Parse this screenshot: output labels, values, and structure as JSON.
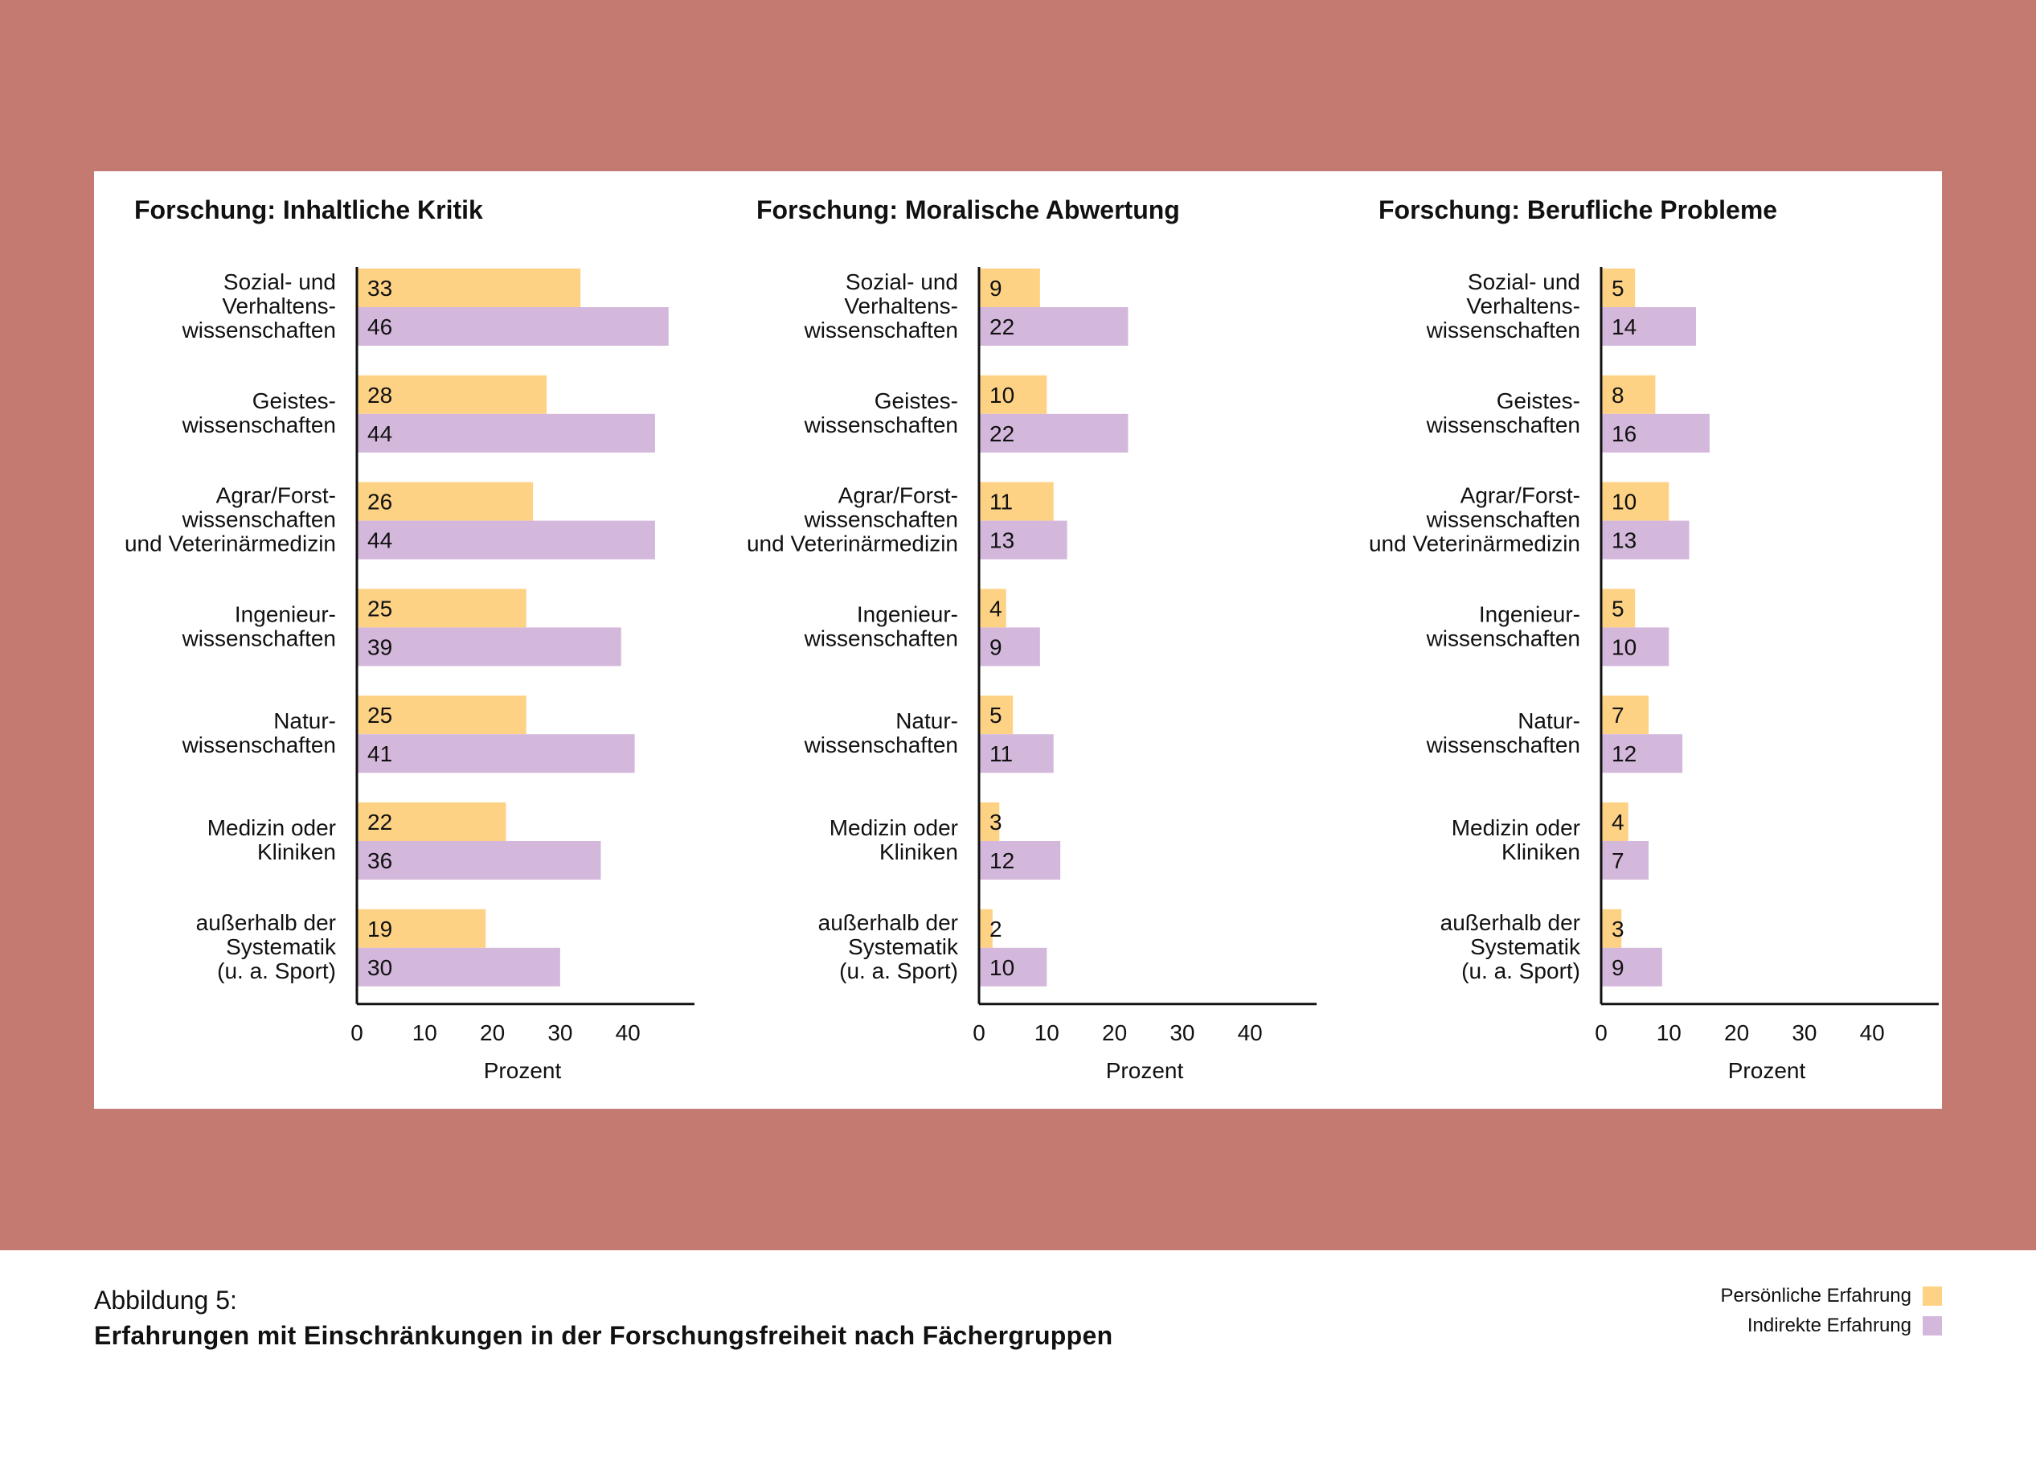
{
  "colors": {
    "background_band": "#c47a70",
    "card": "#ffffff",
    "personal": "#fed285",
    "indirect": "#d4b8dc",
    "text": "#111111",
    "axis": "#111111"
  },
  "caption": {
    "label": "Abbildung 5:",
    "title": "Erfahrungen mit Einschränkungen in der Forschungsfreiheit nach Fächergruppen"
  },
  "legend": {
    "personal": "Persönliche Erfahrung",
    "indirect": "Indirekte Erfahrung"
  },
  "chart_data": [
    {
      "type": "bar",
      "orientation": "horizontal",
      "title": "Forschung: Inhaltliche Kritik",
      "xlabel": "Prozent",
      "xlim": [
        0,
        50
      ],
      "xticks": [
        0,
        10,
        20,
        30,
        40
      ],
      "categories": [
        [
          "Sozial- und",
          "Verhaltens-",
          "wissenschaften"
        ],
        [
          "Geistes-",
          "wissenschaften"
        ],
        [
          "Agrar/Forst-",
          "wissenschaften",
          "und Veterinärmedizin"
        ],
        [
          "Ingenieur-",
          "wissenschaften"
        ],
        [
          "Natur-",
          "wissenschaften"
        ],
        [
          "Medizin oder",
          "Kliniken"
        ],
        [
          "außerhalb der",
          "Systematik",
          "(u. a. Sport)"
        ]
      ],
      "series": [
        {
          "name": "Persönliche Erfahrung",
          "color": "#fed285",
          "values": [
            33,
            28,
            26,
            25,
            25,
            22,
            19
          ]
        },
        {
          "name": "Indirekte Erfahrung",
          "color": "#d4b8dc",
          "values": [
            46,
            44,
            44,
            39,
            41,
            36,
            30
          ]
        }
      ]
    },
    {
      "type": "bar",
      "orientation": "horizontal",
      "title": "Forschung: Moralische Abwertung",
      "xlabel": "Prozent",
      "xlim": [
        0,
        50
      ],
      "xticks": [
        0,
        10,
        20,
        30,
        40
      ],
      "categories": [
        [
          "Sozial- und",
          "Verhaltens-",
          "wissenschaften"
        ],
        [
          "Geistes-",
          "wissenschaften"
        ],
        [
          "Agrar/Forst-",
          "wissenschaften",
          "und Veterinärmedizin"
        ],
        [
          "Ingenieur-",
          "wissenschaften"
        ],
        [
          "Natur-",
          "wissenschaften"
        ],
        [
          "Medizin oder",
          "Kliniken"
        ],
        [
          "außerhalb der",
          "Systematik",
          "(u. a. Sport)"
        ]
      ],
      "series": [
        {
          "name": "Persönliche Erfahrung",
          "color": "#fed285",
          "values": [
            9,
            10,
            11,
            4,
            5,
            3,
            2
          ]
        },
        {
          "name": "Indirekte Erfahrung",
          "color": "#d4b8dc",
          "values": [
            22,
            22,
            13,
            9,
            11,
            12,
            10
          ]
        }
      ]
    },
    {
      "type": "bar",
      "orientation": "horizontal",
      "title": "Forschung: Berufliche Probleme",
      "xlabel": "Prozent",
      "xlim": [
        0,
        50
      ],
      "xticks": [
        0,
        10,
        20,
        30,
        40
      ],
      "categories": [
        [
          "Sozial- und",
          "Verhaltens-",
          "wissenschaften"
        ],
        [
          "Geistes-",
          "wissenschaften"
        ],
        [
          "Agrar/Forst-",
          "wissenschaften",
          "und Veterinärmedizin"
        ],
        [
          "Ingenieur-",
          "wissenschaften"
        ],
        [
          "Natur-",
          "wissenschaften"
        ],
        [
          "Medizin oder",
          "Kliniken"
        ],
        [
          "außerhalb der",
          "Systematik",
          "(u. a. Sport)"
        ]
      ],
      "series": [
        {
          "name": "Persönliche Erfahrung",
          "color": "#fed285",
          "values": [
            5,
            8,
            10,
            5,
            7,
            4,
            3
          ]
        },
        {
          "name": "Indirekte Erfahrung",
          "color": "#d4b8dc",
          "values": [
            14,
            16,
            13,
            10,
            12,
            7,
            9
          ]
        }
      ]
    }
  ]
}
